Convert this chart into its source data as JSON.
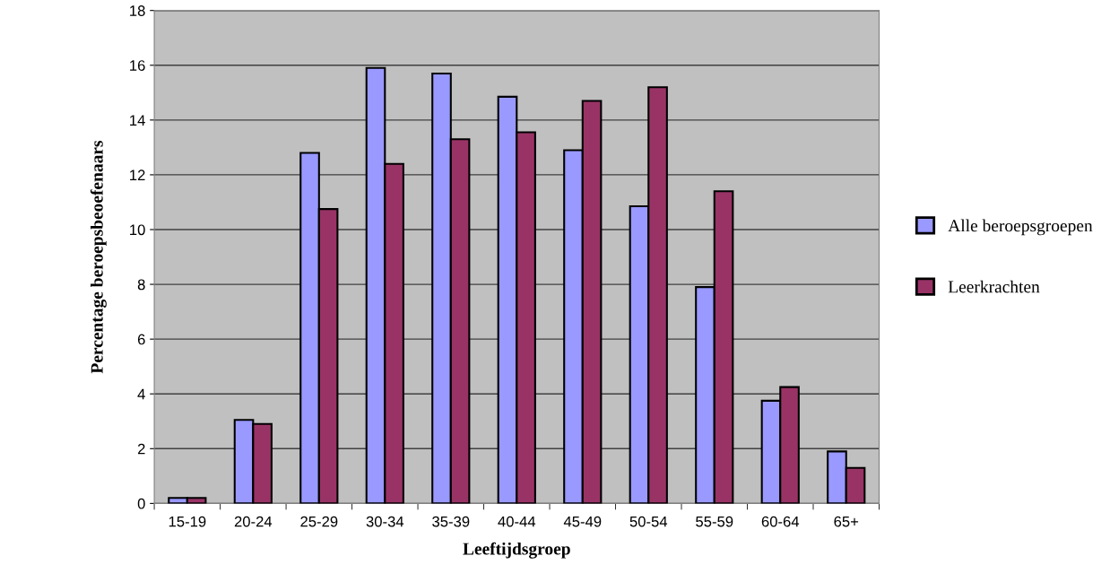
{
  "chart_data": {
    "type": "bar",
    "xlabel": "Leeftijdsgroep",
    "ylabel": "Percentage beroepsbeoefenaars",
    "categories": [
      "15-19",
      "20-24",
      "25-29",
      "30-34",
      "35-39",
      "40-44",
      "45-49",
      "50-54",
      "55-59",
      "60-64",
      "65+"
    ],
    "series": [
      {
        "name": "Alle beroepsgroepen",
        "color": "#9999ff",
        "values": [
          0.2,
          3.05,
          12.8,
          15.9,
          15.7,
          14.85,
          12.9,
          10.85,
          7.9,
          3.75,
          1.9
        ]
      },
      {
        "name": "Leerkrachten",
        "color": "#993366",
        "values": [
          0.2,
          2.9,
          10.75,
          12.4,
          13.3,
          13.55,
          14.7,
          15.2,
          11.4,
          4.25,
          1.3
        ]
      }
    ],
    "ylim": [
      0,
      18
    ],
    "yticks": [
      0,
      2,
      4,
      6,
      8,
      10,
      12,
      14,
      16,
      18
    ],
    "grid": "y",
    "legend": "right"
  }
}
